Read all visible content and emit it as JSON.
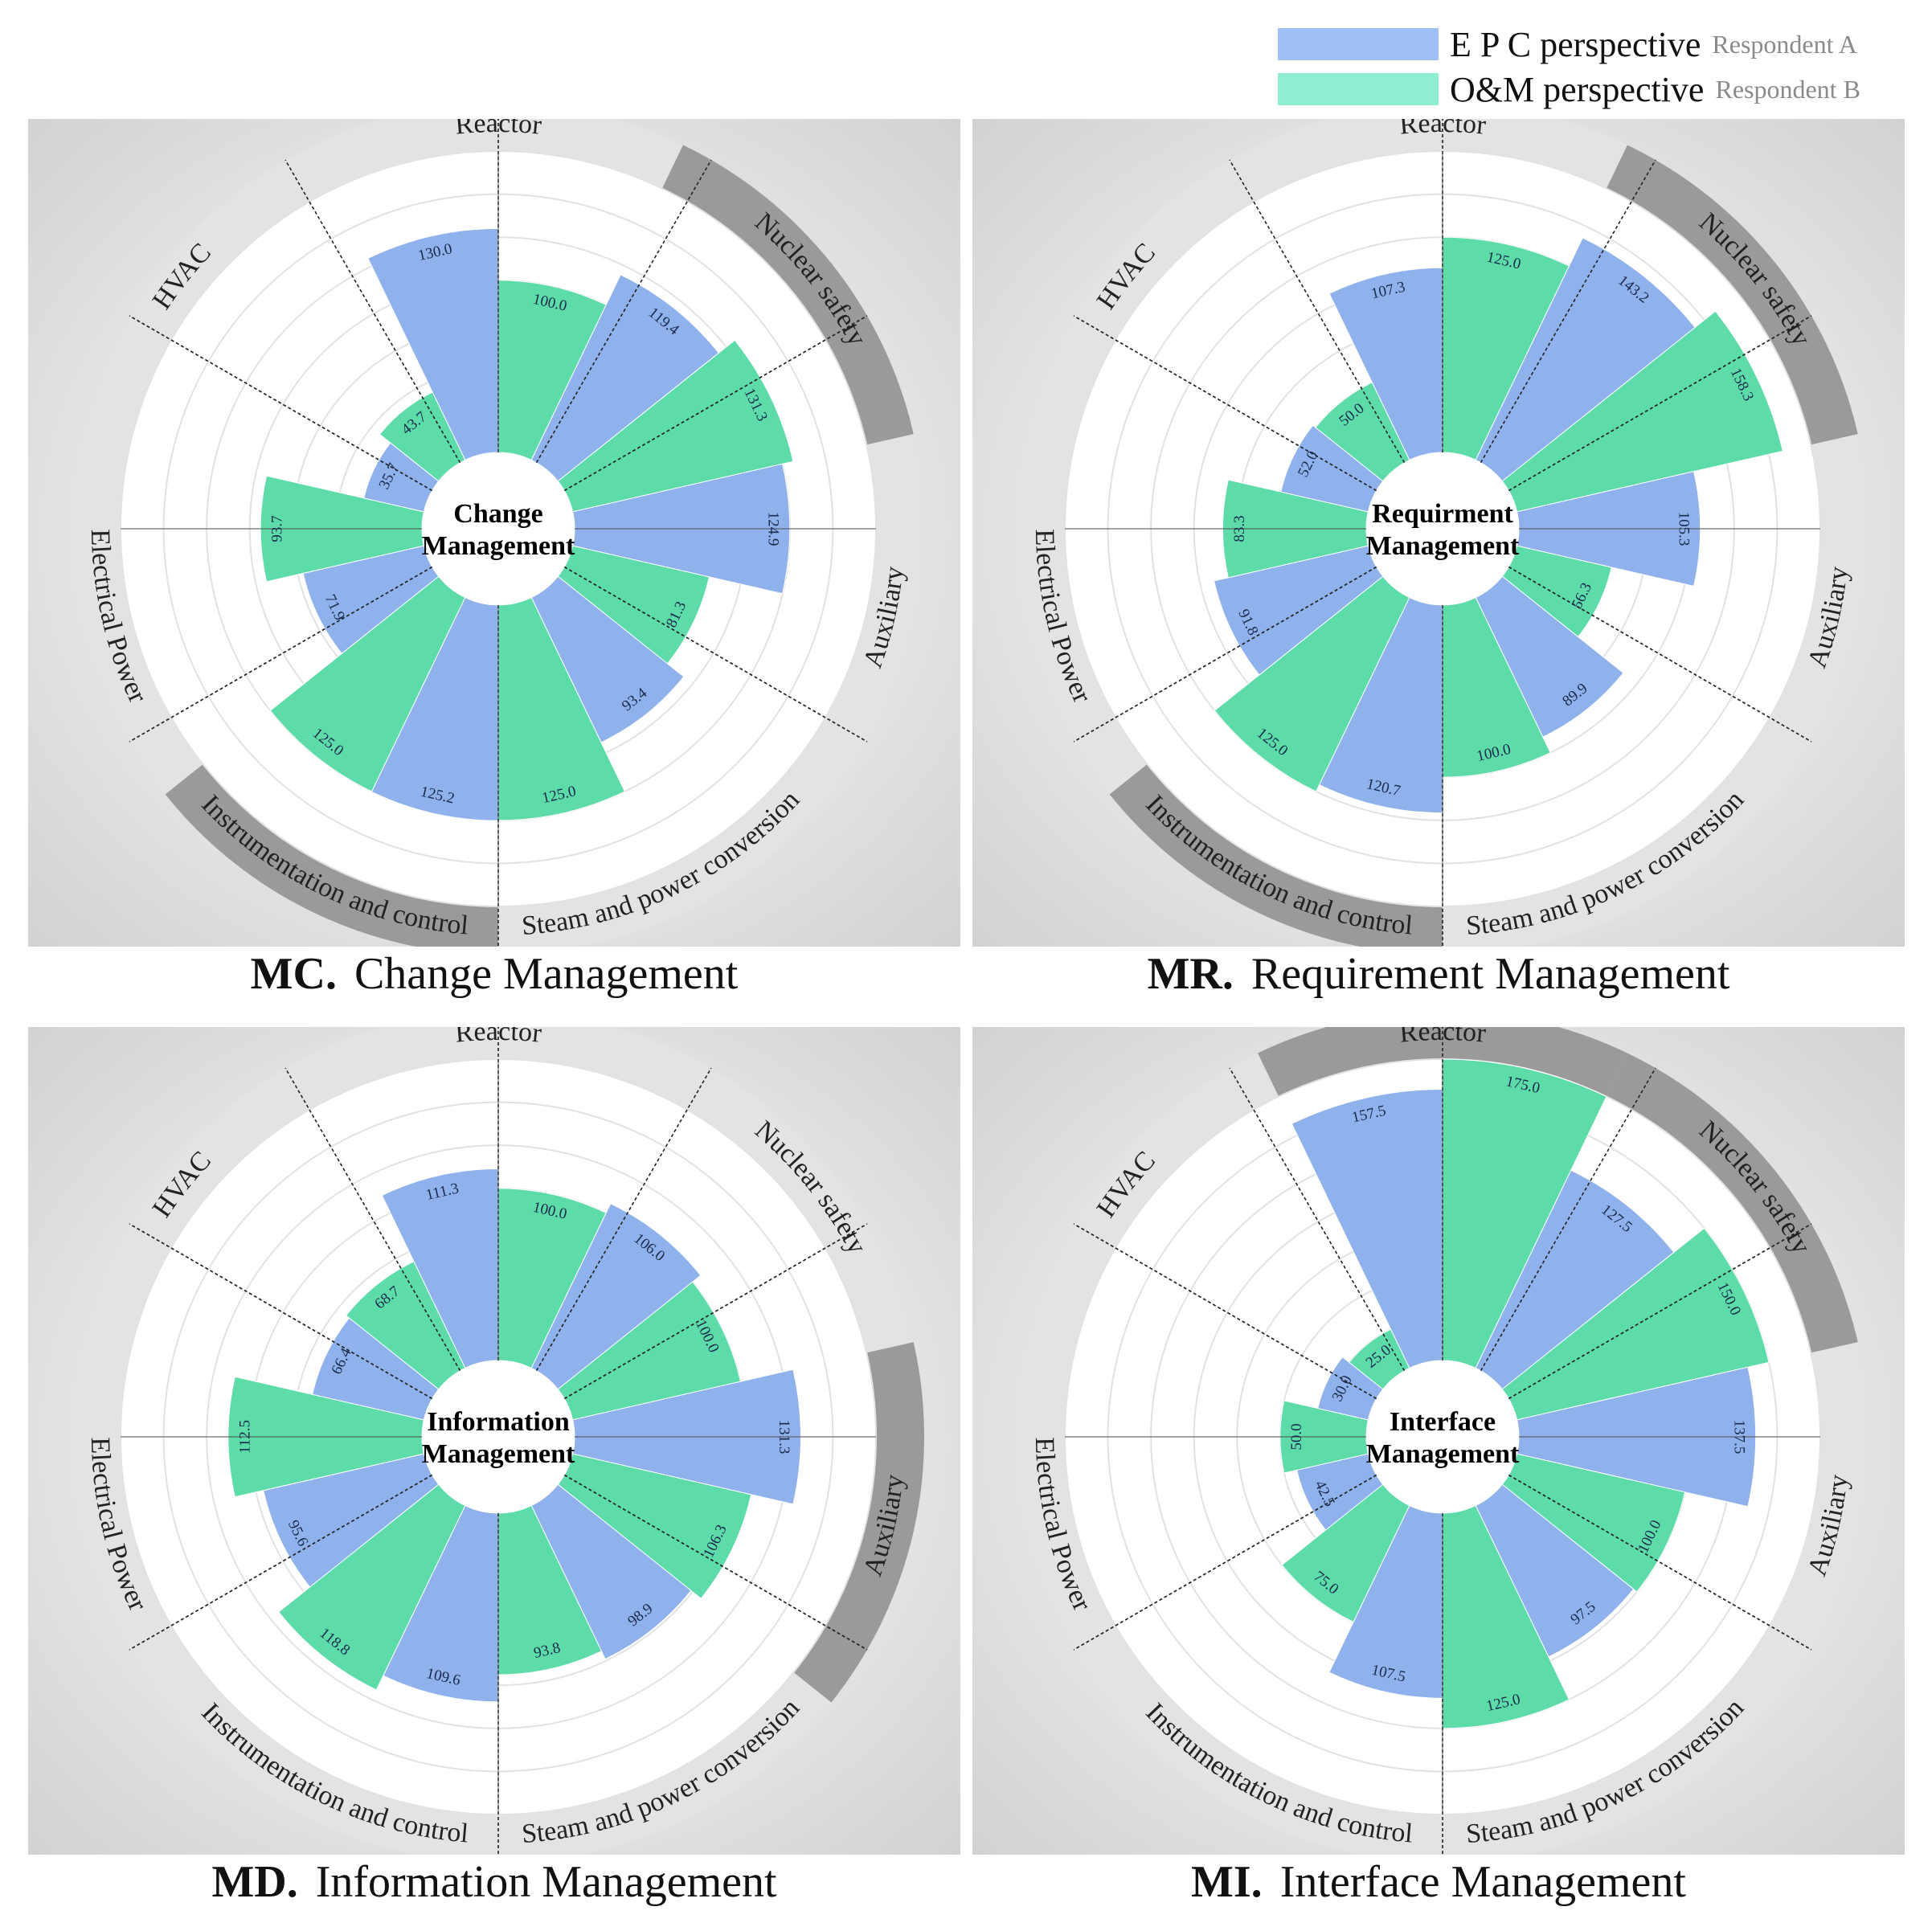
{
  "legend": {
    "items": [
      {
        "label": "E P C perspective",
        "sub": "Respondent A",
        "color": "#a0bff5"
      },
      {
        "label": "O&M perspective",
        "sub": "Respondent B",
        "color": "#8eeed2"
      }
    ]
  },
  "colors": {
    "epc": "#8fb1ec",
    "om": "#5ddcaa",
    "sector_band": "#e3e3e3",
    "highlight_band": "#9a9a9a"
  },
  "chart_data": [
    {
      "type": "polar-bar",
      "code": "MC.",
      "title": "Change Management",
      "center_lines": [
        "Change",
        "Management"
      ],
      "categories": [
        "Reactor",
        "Nuclear safety",
        "Auxiliary",
        "Steam and power conversion",
        "Instrumentation and control",
        "Electrical Power",
        "HVAC"
      ],
      "highlighted": [
        "Nuclear safety",
        "Instrumentation and control"
      ],
      "series": [
        {
          "name": "E P C perspective",
          "values": [
            130.0,
            119.4,
            124.9,
            93.4,
            125.2,
            71.9,
            35.7
          ]
        },
        {
          "name": "O&M perspective",
          "values": [
            100.0,
            131.3,
            81.3,
            125.0,
            125.0,
            93.7,
            43.7
          ]
        }
      ],
      "rlim": [
        0,
        175
      ],
      "grid": true
    },
    {
      "type": "polar-bar",
      "code": "MR.",
      "title": "Requirement Management",
      "center_lines": [
        "Requirment",
        "Management"
      ],
      "categories": [
        "Reactor",
        "Nuclear safety",
        "Auxiliary",
        "Steam and power conversion",
        "Instrumentation and control",
        "Electrical Power",
        "HVAC"
      ],
      "highlighted": [
        "Nuclear safety",
        "Instrumentation and control"
      ],
      "series": [
        {
          "name": "E P C perspective",
          "values": [
            107.3,
            143.2,
            105.3,
            89.9,
            120.7,
            91.8,
            52.0
          ]
        },
        {
          "name": "O&M perspective",
          "values": [
            125.0,
            158.3,
            56.3,
            100.0,
            125.0,
            83.3,
            50.0
          ]
        }
      ],
      "rlim": [
        0,
        175
      ],
      "grid": true
    },
    {
      "type": "polar-bar",
      "code": "MD.",
      "title": "Information Management",
      "center_lines": [
        "Information",
        "Management"
      ],
      "categories": [
        "Reactor",
        "Nuclear safety",
        "Auxiliary",
        "Steam and power conversion",
        "Instrumentation and control",
        "Electrical Power",
        "HVAC"
      ],
      "highlighted": [
        "Auxiliary"
      ],
      "series": [
        {
          "name": "E P C perspective",
          "values": [
            111.3,
            106.0,
            131.3,
            98.9,
            109.6,
            95.6,
            66.4
          ]
        },
        {
          "name": "O&M perspective",
          "values": [
            100.0,
            100.0,
            106.3,
            93.8,
            118.8,
            112.5,
            68.7
          ]
        }
      ],
      "rlim": [
        0,
        175
      ],
      "grid": true
    },
    {
      "type": "polar-bar",
      "code": "MI.",
      "title": "Interface Management",
      "center_lines": [
        "Interface",
        "Management"
      ],
      "categories": [
        "Reactor",
        "Nuclear safety",
        "Auxiliary",
        "Steam and power conversion",
        "Instrumentation and control",
        "Electrical Power",
        "HVAC"
      ],
      "highlighted": [
        "Reactor",
        "Nuclear safety"
      ],
      "series": [
        {
          "name": "E P C perspective",
          "values": [
            157.5,
            127.5,
            137.5,
            97.5,
            107.5,
            42.5,
            30.0
          ]
        },
        {
          "name": "O&M perspective",
          "values": [
            175.0,
            150.0,
            100.0,
            125.0,
            75.0,
            50.0,
            25.0
          ]
        }
      ],
      "rlim": [
        0,
        175
      ],
      "grid": true
    }
  ]
}
